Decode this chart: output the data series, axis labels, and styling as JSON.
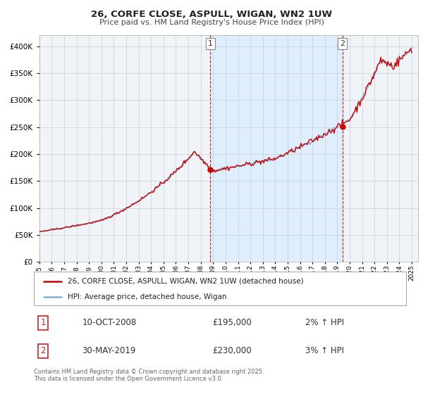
{
  "title_line1": "26, CORFE CLOSE, ASPULL, WIGAN, WN2 1UW",
  "title_line2": "Price paid vs. HM Land Registry's House Price Index (HPI)",
  "ylim": [
    0,
    420000
  ],
  "yticks": [
    0,
    50000,
    100000,
    150000,
    200000,
    250000,
    300000,
    350000,
    400000
  ],
  "x_start_year": 1995,
  "x_end_year": 2025,
  "marker1_date": "10-OCT-2008",
  "marker1_price": 195000,
  "marker1_hpi": "2% ↑ HPI",
  "marker1_x": 2008.78,
  "marker2_date": "30-MAY-2019",
  "marker2_price": 230000,
  "marker2_hpi": "3% ↑ HPI",
  "marker2_x": 2019.41,
  "legend_line1": "26, CORFE CLOSE, ASPULL, WIGAN, WN2 1UW (detached house)",
  "legend_line2": "HPI: Average price, detached house, Wigan",
  "footnote": "Contains HM Land Registry data © Crown copyright and database right 2025.\nThis data is licensed under the Open Government Licence v3.0.",
  "price_line_color": "#cc0000",
  "hpi_line_color": "#7fb3d3",
  "marker_line_color": "#cc0000",
  "shade_color": "#ddeeff",
  "background_color": "#f0f4f8",
  "grid_color": "#cccccc",
  "marker_dot_color": "#cc0000"
}
